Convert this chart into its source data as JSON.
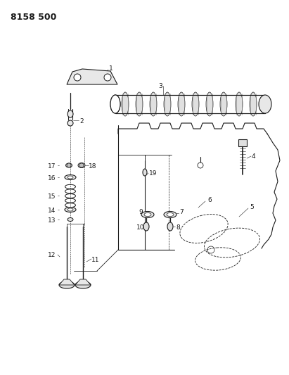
{
  "title": "8158 500",
  "bg_color": "#ffffff",
  "line_color": "#1a1a1a",
  "title_fontsize": 9,
  "fig_width": 4.11,
  "fig_height": 5.33,
  "dpi": 100
}
